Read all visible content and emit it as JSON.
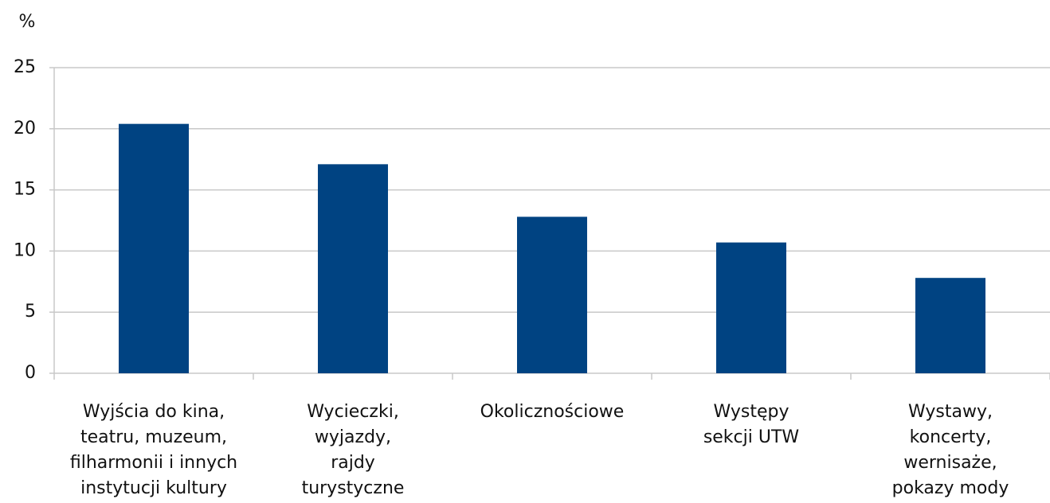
{
  "chart_data": {
    "type": "bar",
    "y_label": "%",
    "categories": [
      "Wyjścia do kina,\nteatru, muzeum,\nfilharmonii i innych\ninstytucji kultury",
      "Wycieczki,\nwyjazdy,\nrajdy\nturystyczne",
      "Okolicznościowe",
      "Występy\nsekcji UTW",
      "Wystawy,\nkoncerty,\nwernisaże,\npokazy mody"
    ],
    "values": [
      20.4,
      17.1,
      12.8,
      10.7,
      7.8
    ],
    "color": "#004382",
    "ylim": [
      0,
      25
    ],
    "yticks": [
      0,
      5,
      10,
      15,
      20,
      25
    ],
    "grid": true
  }
}
